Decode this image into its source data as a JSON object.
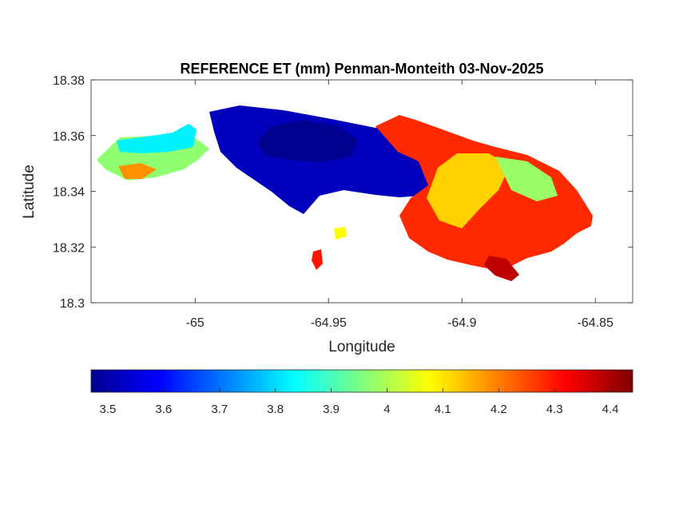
{
  "figure": {
    "title": "REFERENCE ET (mm) Penman-Monteith 03-Nov-2025",
    "xlabel": "Longitude",
    "ylabel": "Latitude"
  },
  "map": {
    "x_ticks": [
      "-65",
      "-64.95",
      "-64.9",
      "-64.85"
    ],
    "y_ticks": [
      "18.38",
      "18.36",
      "18.34",
      "18.32",
      "18.3"
    ],
    "xlim": [
      -65.039,
      -64.836
    ],
    "ylim": [
      18.3,
      18.38
    ],
    "colormap": "jet",
    "legend": "colorbar-below",
    "landmass": "St. John, U.S. Virgin Islands",
    "zones": [
      {
        "name": "west-tip",
        "value": 3.97
      },
      {
        "name": "northwest-cyan",
        "value": 3.82
      },
      {
        "name": "south-west-orange",
        "value": 4.18
      },
      {
        "name": "central-low",
        "value": 3.52
      },
      {
        "name": "central-low-core",
        "value": 3.47
      },
      {
        "name": "eastern-high",
        "value": 4.28
      },
      {
        "name": "east-interior",
        "value": 4.12
      },
      {
        "name": "coral-bay-green",
        "value": 3.98
      },
      {
        "name": "southeast-dark",
        "value": 4.38
      },
      {
        "name": "islet-south",
        "value": 4.3
      },
      {
        "name": "islet-small",
        "value": 4.08
      }
    ]
  },
  "colorbar": {
    "ticks": [
      "3.5",
      "3.6",
      "3.7",
      "3.8",
      "3.9",
      "4",
      "4.1",
      "4.2",
      "4.3",
      "4.4"
    ],
    "range": [
      3.47,
      4.44
    ]
  },
  "colors": {
    "jet_darkblue": "#00008f",
    "jet_blue": "#0000ff",
    "jet_cyan": "#00ffff",
    "jet_yellow": "#ffff00",
    "jet_red": "#ff0000",
    "jet_darkred": "#800000",
    "axis": "#262626"
  }
}
